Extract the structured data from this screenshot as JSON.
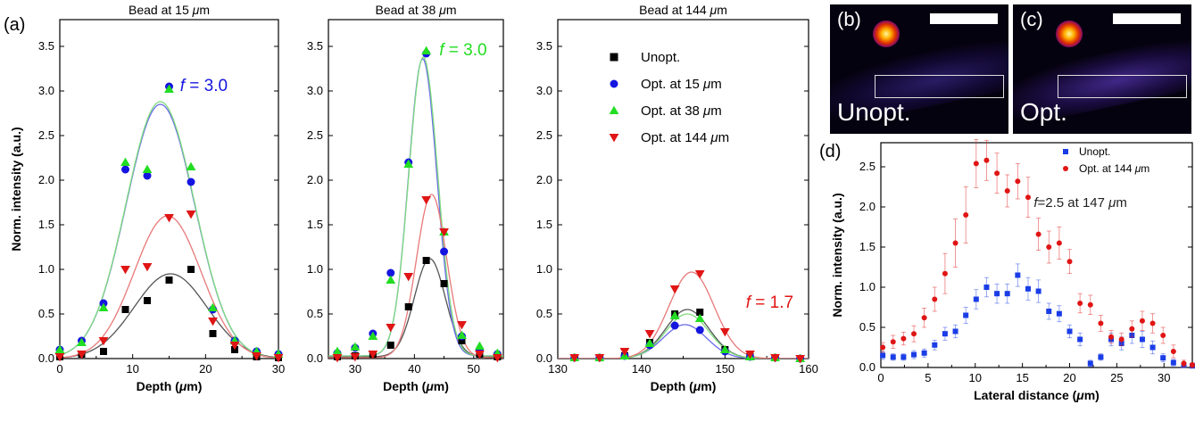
{
  "panel_labels": {
    "a": "(a)",
    "b": "(b)",
    "c": "(c)",
    "d": "(d)"
  },
  "images": {
    "b_label": "Unopt.",
    "c_label": "Opt."
  },
  "colors": {
    "unopt": "#000000",
    "opt15": "#1515e0",
    "opt38": "#22dd22",
    "opt144": "#e01515",
    "fit_unopt": "#555555",
    "fit_opt15": "#6a6ae8",
    "fit_opt38": "#7edc7e",
    "fit_opt144": "#e87878",
    "d_unopt": "#1a3de6",
    "d_opt144": "#e01515"
  },
  "chart_data": [
    {
      "type": "scatter",
      "title": "Bead at 15 μm",
      "xlabel": "Depth (μm)",
      "ylabel": "Norm. intensity (a.u.)",
      "xlim": [
        0,
        30
      ],
      "ylim": [
        0,
        3.8
      ],
      "xticks": [
        0,
        10,
        20,
        30
      ],
      "yticks": [
        0.0,
        0.5,
        1.0,
        1.5,
        2.0,
        2.5,
        3.0,
        3.5
      ],
      "annotation": {
        "text": "f = 3.0",
        "color": "#1515e0",
        "x": 16.5,
        "y": 3.0
      },
      "series": [
        {
          "name": "Unopt.",
          "marker": "square",
          "x": [
            0,
            3,
            6,
            9,
            12,
            15,
            18,
            21,
            24,
            27,
            30
          ],
          "y": [
            0.02,
            0.05,
            0.08,
            0.55,
            0.65,
            0.88,
            1.0,
            0.28,
            0.1,
            0.02,
            0.01
          ]
        },
        {
          "name": "Opt. at 15 μm",
          "marker": "circle",
          "x": [
            0,
            3,
            6,
            9,
            12,
            15,
            18,
            21,
            24,
            27,
            30
          ],
          "y": [
            0.1,
            0.2,
            0.62,
            2.12,
            2.05,
            3.05,
            1.98,
            0.55,
            0.2,
            0.08,
            0.05
          ]
        },
        {
          "name": "Opt. at 38 μm",
          "marker": "triangle-up",
          "x": [
            0,
            3,
            6,
            9,
            12,
            15,
            18,
            21,
            24,
            27,
            30
          ],
          "y": [
            0.1,
            0.18,
            0.57,
            2.2,
            2.12,
            3.02,
            2.15,
            0.57,
            0.2,
            0.08,
            0.05
          ]
        },
        {
          "name": "Opt. at 144 μm",
          "marker": "triangle-down",
          "x": [
            0,
            3,
            6,
            9,
            12,
            15,
            18,
            21,
            24,
            27,
            30
          ],
          "y": [
            0.02,
            0.05,
            0.2,
            1.0,
            1.03,
            1.58,
            1.62,
            0.42,
            0.15,
            0.03,
            0.01
          ]
        }
      ],
      "fits": [
        {
          "series": "Unopt.",
          "amp": 0.95,
          "center": 15.2,
          "sigma": 5.0
        },
        {
          "series": "Opt. at 15 μm",
          "amp": 2.85,
          "center": 13.8,
          "sigma": 4.7
        },
        {
          "series": "Opt. at 38 μm",
          "amp": 2.88,
          "center": 13.8,
          "sigma": 4.7
        },
        {
          "series": "Opt. at 144 μm",
          "amp": 1.6,
          "center": 14.8,
          "sigma": 4.6
        }
      ]
    },
    {
      "type": "scatter",
      "title": "Bead at 38 μm",
      "xlabel": "Depth (μm)",
      "ylabel": "",
      "xlim": [
        25.5,
        55
      ],
      "ylim": [
        0,
        3.8
      ],
      "xticks": [
        30,
        40,
        50
      ],
      "yticks": [
        0.0,
        0.5,
        1.0,
        1.5,
        2.0,
        2.5,
        3.0,
        3.5
      ],
      "annotation": {
        "text": "f = 3.0",
        "color": "#22dd22",
        "x": 44.2,
        "y": 3.4
      },
      "series": [
        {
          "name": "Unopt.",
          "marker": "square",
          "x": [
            27,
            30,
            33,
            36,
            39,
            42,
            45,
            48,
            51,
            54
          ],
          "y": [
            0.02,
            0.03,
            0.05,
            0.15,
            0.58,
            1.1,
            0.84,
            0.2,
            0.05,
            0.02
          ]
        },
        {
          "name": "Opt. at 15 μm",
          "marker": "circle",
          "x": [
            27,
            30,
            33,
            36,
            39,
            42,
            45,
            48,
            51,
            54
          ],
          "y": [
            0.06,
            0.12,
            0.28,
            0.96,
            2.2,
            3.42,
            1.2,
            0.25,
            0.1,
            0.05
          ]
        },
        {
          "name": "Opt. at 38 μm",
          "marker": "triangle-up",
          "x": [
            27,
            30,
            33,
            36,
            39,
            42,
            45,
            48,
            51,
            54
          ],
          "y": [
            0.08,
            0.13,
            0.25,
            0.88,
            2.18,
            3.45,
            1.42,
            0.26,
            0.14,
            0.06
          ]
        },
        {
          "name": "Opt. at 144 μm",
          "marker": "triangle-down",
          "x": [
            27,
            30,
            33,
            36,
            39,
            42,
            45,
            48,
            51,
            54
          ],
          "y": [
            0.01,
            0.02,
            0.05,
            0.35,
            0.92,
            1.78,
            1.42,
            0.38,
            0.05,
            0.01
          ]
        }
      ],
      "fits": [
        {
          "series": "Unopt.",
          "amp": 1.1,
          "center": 42.6,
          "sigma": 2.6,
          "base": 0.02
        },
        {
          "series": "Opt. at 15 μm",
          "amp": 3.33,
          "center": 41.4,
          "sigma": 2.4,
          "base": 0.03
        },
        {
          "series": "Opt. at 38 μm",
          "amp": 3.35,
          "center": 41.5,
          "sigma": 2.45,
          "base": 0.03
        },
        {
          "series": "Opt. at 144 μm",
          "amp": 1.83,
          "center": 42.9,
          "sigma": 2.55,
          "base": 0.01
        }
      ]
    },
    {
      "type": "scatter",
      "title": "Bead at 144 μm",
      "xlabel": "Depth (μm)",
      "ylabel": "",
      "xlim": [
        130,
        160
      ],
      "ylim": [
        0,
        3.8
      ],
      "xticks": [
        130,
        140,
        150,
        160
      ],
      "yticks": [
        0.0,
        0.5,
        1.0,
        1.5,
        2.0,
        2.5,
        3.0,
        3.5
      ],
      "annotation": {
        "text": "f = 1.7",
        "color": "#e01515",
        "x": 152.5,
        "y": 0.57
      },
      "legend": [
        "Unopt.",
        "Opt. at 15 μm",
        "Opt. at 38 μm",
        "Opt. at 144 μm"
      ],
      "series": [
        {
          "name": "Unopt.",
          "marker": "square",
          "x": [
            132,
            135,
            138,
            141,
            144,
            147,
            150,
            153,
            156,
            159
          ],
          "y": [
            0.01,
            0.01,
            0.03,
            0.18,
            0.5,
            0.52,
            0.1,
            0.02,
            0.01,
            0.0
          ]
        },
        {
          "name": "Opt. at 15 μm",
          "marker": "circle",
          "x": [
            132,
            135,
            138,
            141,
            144,
            147,
            150,
            153,
            156,
            159
          ],
          "y": [
            0.01,
            0.01,
            0.03,
            0.15,
            0.37,
            0.32,
            0.08,
            0.02,
            0.01,
            0.0
          ]
        },
        {
          "name": "Opt. at 38 μm",
          "marker": "triangle-up",
          "x": [
            132,
            135,
            138,
            141,
            144,
            147,
            150,
            153,
            156,
            159
          ],
          "y": [
            0.01,
            0.01,
            0.03,
            0.17,
            0.48,
            0.45,
            0.1,
            0.02,
            0.01,
            0.0
          ]
        },
        {
          "name": "Opt. at 144 μm",
          "marker": "triangle-down",
          "x": [
            132,
            135,
            138,
            141,
            144,
            147,
            150,
            153,
            156,
            159
          ],
          "y": [
            0.01,
            0.01,
            0.08,
            0.28,
            0.78,
            0.95,
            0.3,
            0.05,
            0.01,
            0.0
          ]
        }
      ],
      "fits": [
        {
          "series": "Unopt.",
          "amp": 0.55,
          "center": 145.5,
          "sigma": 2.6
        },
        {
          "series": "Opt. at 15 μm",
          "amp": 0.38,
          "center": 145.2,
          "sigma": 2.6
        },
        {
          "series": "Opt. at 38 μm",
          "amp": 0.5,
          "center": 145.5,
          "sigma": 2.6
        },
        {
          "series": "Opt. at 144 μm",
          "amp": 0.97,
          "center": 146.0,
          "sigma": 2.7
        }
      ]
    },
    {
      "type": "scatter",
      "title": "",
      "xlabel": "Lateral distance (μm)",
      "ylabel": "Norm. intensity (a.u.)",
      "xlim": [
        0,
        33
      ],
      "ylim": [
        0,
        2.8
      ],
      "xticks": [
        0,
        5,
        10,
        15,
        20,
        25,
        30
      ],
      "yticks": [
        0.0,
        0.5,
        1.0,
        1.5,
        2.0,
        2.5
      ],
      "annotation": {
        "text": "f=2.5 at 147 μm",
        "color": "#222222",
        "x": 16.2,
        "y": 2.0
      },
      "legend": [
        "Unopt.",
        "Opt. at 144 μm"
      ],
      "series": [
        {
          "name": "Unopt.",
          "marker": "square-small",
          "x": [
            0.2,
            1.3,
            2.4,
            3.5,
            4.6,
            5.7,
            6.8,
            7.9,
            9.0,
            10.1,
            11.2,
            12.3,
            13.4,
            14.5,
            15.6,
            16.7,
            17.8,
            18.9,
            20.0,
            21.1,
            22.2,
            23.3,
            24.4,
            25.5,
            26.6,
            27.7,
            28.8,
            29.9,
            31.0,
            32.1,
            33.0
          ],
          "y": [
            0.15,
            0.13,
            0.13,
            0.16,
            0.18,
            0.28,
            0.42,
            0.45,
            0.65,
            0.85,
            1.0,
            0.92,
            0.92,
            1.15,
            0.98,
            0.95,
            0.7,
            0.67,
            0.45,
            0.35,
            0.05,
            0.13,
            0.35,
            0.3,
            0.4,
            0.35,
            0.25,
            0.12,
            0.06,
            0.03,
            0.02
          ],
          "err": [
            0.05,
            0.04,
            0.04,
            0.05,
            0.05,
            0.06,
            0.08,
            0.08,
            0.1,
            0.12,
            0.12,
            0.12,
            0.12,
            0.14,
            0.14,
            0.14,
            0.1,
            0.1,
            0.08,
            0.08,
            0.04,
            0.04,
            0.08,
            0.08,
            0.1,
            0.1,
            0.08,
            0.05,
            0.04,
            0.03,
            0.02
          ]
        },
        {
          "name": "Opt. at 144 μm",
          "marker": "circle-small",
          "x": [
            0.2,
            1.3,
            2.4,
            3.5,
            4.6,
            5.7,
            6.8,
            7.9,
            9.0,
            10.1,
            11.2,
            12.3,
            13.4,
            14.5,
            15.6,
            16.7,
            17.8,
            18.9,
            20.0,
            21.1,
            22.2,
            23.3,
            24.4,
            25.5,
            26.6,
            27.7,
            28.8,
            29.9,
            31.0,
            32.1,
            33.0
          ],
          "y": [
            0.25,
            0.32,
            0.36,
            0.42,
            0.62,
            0.85,
            1.17,
            1.55,
            1.9,
            2.54,
            2.58,
            2.42,
            2.2,
            2.32,
            2.12,
            1.66,
            1.5,
            1.55,
            1.32,
            0.8,
            0.78,
            0.55,
            0.38,
            0.35,
            0.48,
            0.58,
            0.55,
            0.4,
            0.2,
            0.05,
            0.03
          ],
          "err": [
            0.06,
            0.08,
            0.08,
            0.1,
            0.12,
            0.15,
            0.25,
            0.3,
            0.35,
            0.3,
            0.25,
            0.25,
            0.2,
            0.22,
            0.25,
            0.2,
            0.2,
            0.2,
            0.15,
            0.12,
            0.12,
            0.1,
            0.08,
            0.08,
            0.1,
            0.12,
            0.12,
            0.1,
            0.08,
            0.04,
            0.03
          ]
        }
      ]
    }
  ]
}
